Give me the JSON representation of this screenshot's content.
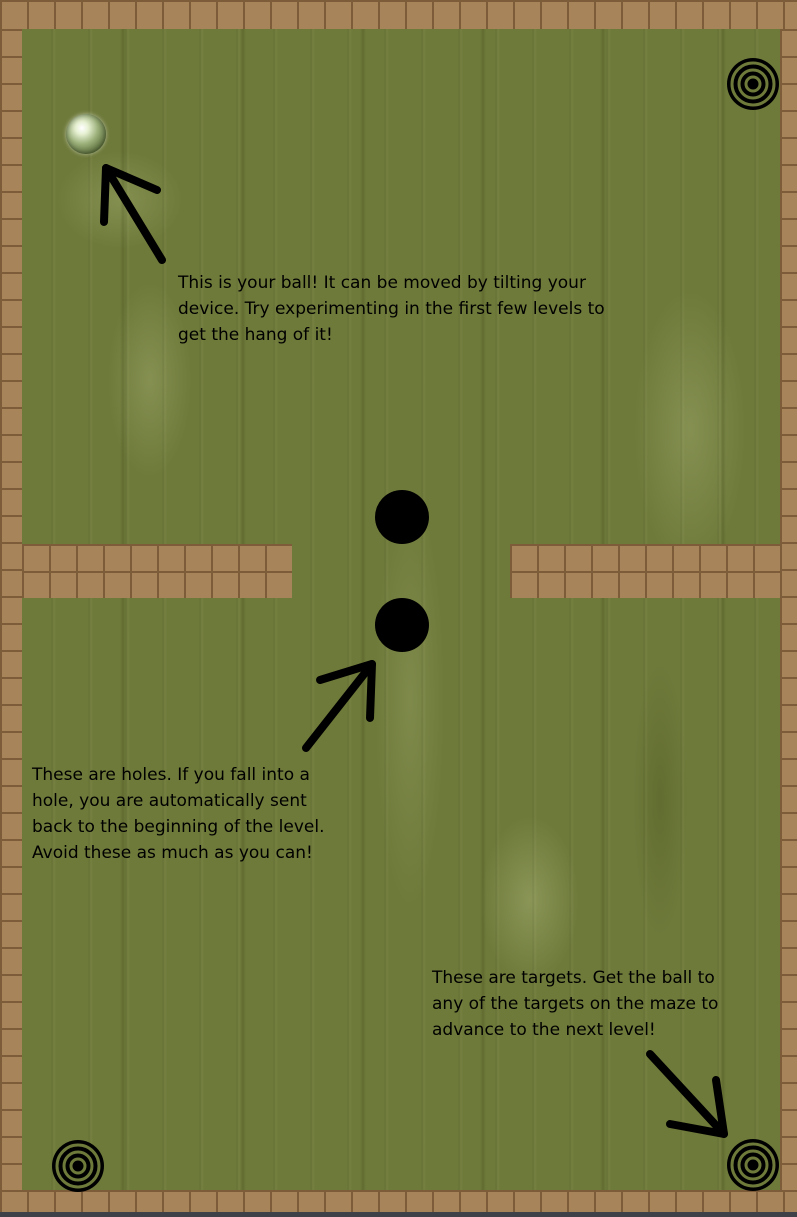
{
  "game": {
    "instructions": {
      "ball": "This is your ball! It can be moved by tilting your device. Try experimenting in the first few levels to get the hang of it!",
      "holes": "These are holes. If you fall into a hole, you are automatically sent back to the beginning of the level. Avoid these as much as you can!",
      "targets": "These are targets. Get the ball to any of the targets on the maze to advance to the next level!"
    },
    "colors": {
      "board": "#6e7a3a",
      "wall": "#a8845b",
      "wall_grout": "#7d5c39",
      "hole": "#000000",
      "text": "#000000"
    },
    "icons": {
      "ball": "glass-marble",
      "hole": "black-circle",
      "target": "concentric-rings-target",
      "arrow": "hand-drawn-arrow"
    }
  }
}
